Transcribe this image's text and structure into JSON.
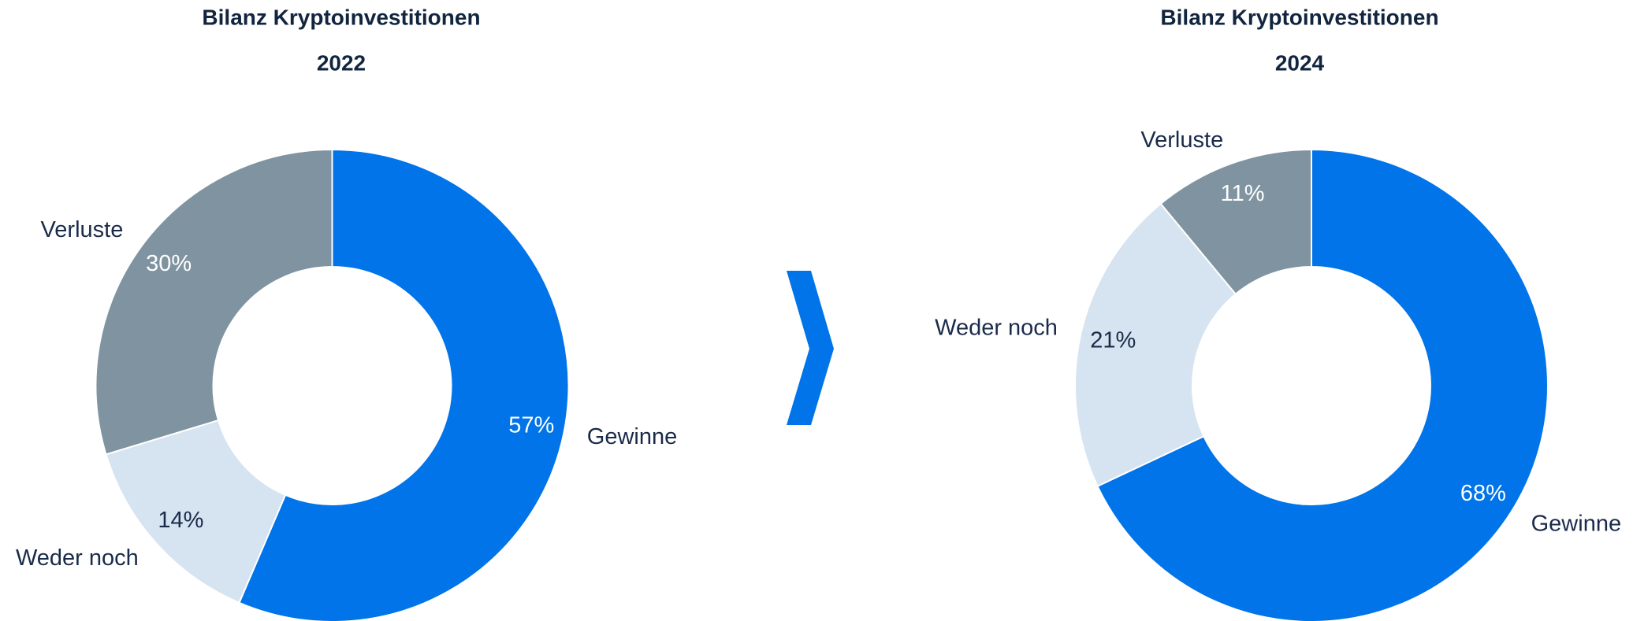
{
  "chart_data": [
    {
      "type": "donut",
      "title": "Bilanz Kryptoinvestitionen",
      "subtitle": "2022",
      "categories": [
        "Gewinne",
        "Weder noch",
        "Verluste"
      ],
      "values": [
        57,
        14,
        30
      ],
      "value_labels": [
        "57%",
        "14%",
        "30%"
      ],
      "colors": [
        "#0074e8",
        "#d6e3f0",
        "#8093a1"
      ]
    },
    {
      "type": "donut",
      "title": "Bilanz Kryptoinvestitionen",
      "subtitle": "2024",
      "categories": [
        "Gewinne",
        "Weder noch",
        "Verluste"
      ],
      "values": [
        68,
        21,
        11
      ],
      "value_labels": [
        "68%",
        "21%",
        "11%"
      ],
      "colors": [
        "#0074e8",
        "#d6e3f0",
        "#8093a1"
      ]
    }
  ]
}
